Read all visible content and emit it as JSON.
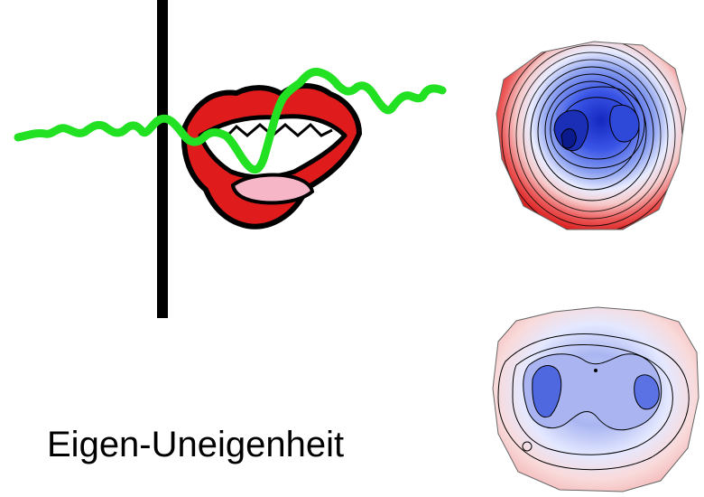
{
  "caption": "Eigen-Uneigenheit",
  "colors": {
    "signal_trace": "#22e022",
    "marker_line": "#000000",
    "lips": "#e01b1b",
    "tongue": "#f6b6c8",
    "map_positive": "#e31a1c",
    "map_negative": "#1f3fd6"
  },
  "icons": [
    "lips-icon",
    "signal-trace",
    "marker-line",
    "topographic-map-strong",
    "topographic-map-weak"
  ]
}
